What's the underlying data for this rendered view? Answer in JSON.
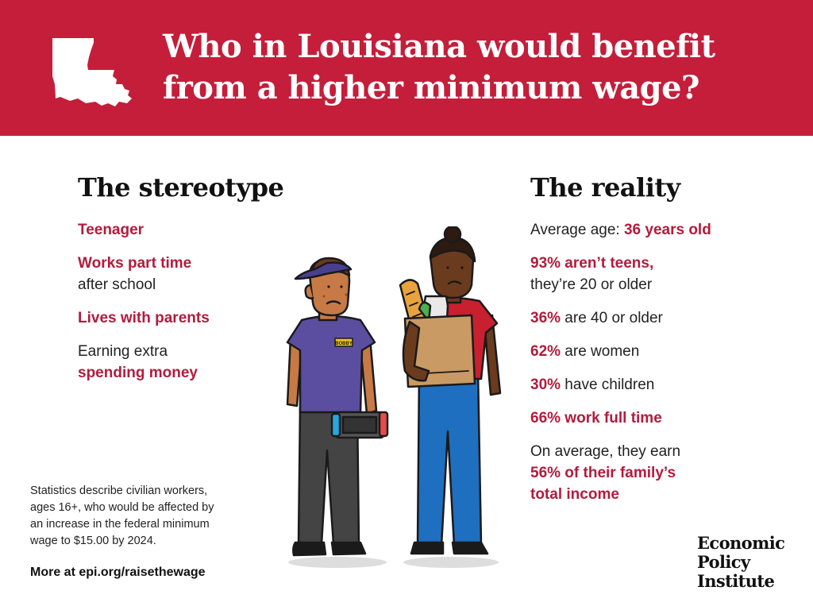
{
  "colors": {
    "banner": "#c41e3a",
    "accent_text": "#b31b3c",
    "shirt_purple": "#5b4ea1",
    "shirt_red": "#c8202f",
    "jeans_blue": "#1f6fc0"
  },
  "banner": {
    "map_icon": "louisiana-map-icon",
    "title_line1": "Who in Louisiana would benefit",
    "title_line2": "from a higher minimum wage?"
  },
  "stereotype": {
    "heading": "The stereotype",
    "item1": "Teenager",
    "item2_bold": "Works part time",
    "item2_rest": "after school",
    "item3": "Lives with parents",
    "item4_rest": "Earning extra",
    "item4_bold": "spending money"
  },
  "illustration": {
    "name_tag": "BOBBY"
  },
  "reality": {
    "heading": "The reality",
    "age_prefix": "Average age: ",
    "age_value": "36 years old",
    "teens_bold": "93% aren’t teens,",
    "teens_rest": "they’re 20 or older",
    "over40_value": "36%",
    "over40_rest": " are 40 or older",
    "women_value": "62%",
    "women_rest": " are women",
    "children_value": "30%",
    "children_rest": " have children",
    "fulltime": "66% work full time",
    "income_rest": "On average, they earn",
    "income_bold1": "56% of their family’s",
    "income_bold2": "total income"
  },
  "footnote": {
    "line1": "Statistics describe civilian workers,",
    "line2": "ages 16+, who would be affected by",
    "line3": "an increase in the federal minimum",
    "line4": "wage to $15.00 by 2024."
  },
  "more_link": "More at epi.org/raisethewage",
  "logo": {
    "line1": "Economic",
    "line2": "Policy",
    "line3": "Institute"
  }
}
